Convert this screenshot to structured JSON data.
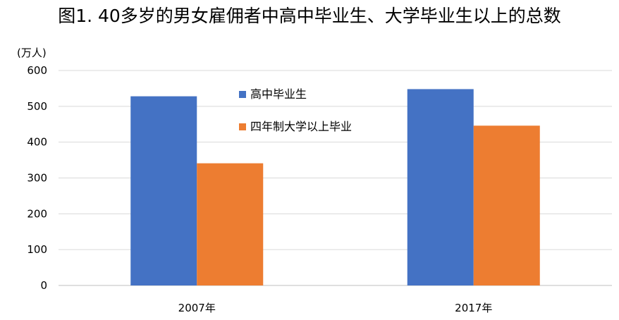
{
  "chart_data": {
    "type": "bar",
    "title": "图1. 40多岁的男女雇佣者中高中毕业生、大学毕业生以上的总数",
    "ylabel": "(万人)",
    "xlabel": "",
    "categories": [
      "2007年",
      "2017年"
    ],
    "series": [
      {
        "name": "高中毕业生",
        "color": "#4472C4",
        "values": [
          528,
          548
        ]
      },
      {
        "name": "四年制大学以上毕业",
        "color": "#ED7D31",
        "values": [
          341,
          446
        ]
      }
    ],
    "ylim": [
      0,
      600
    ],
    "yticks": [
      0,
      100,
      200,
      300,
      400,
      500,
      600
    ],
    "grid": true,
    "legend_position": "top-center"
  }
}
